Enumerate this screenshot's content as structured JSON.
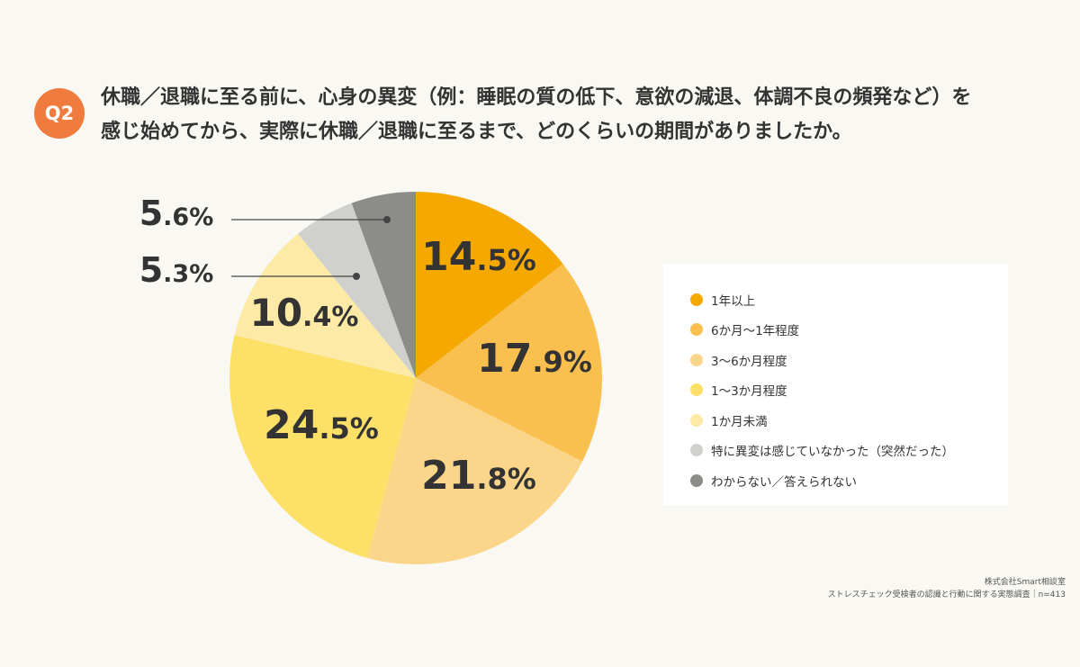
{
  "badge": "Q2",
  "question": {
    "line1": "休職／退職に至る前に、心身の異変（例：睡眠の質の低下、意欲の減退、体調不良の頻発など）を",
    "line2": "感じ始めてから、実際に休職／退職に至るまで、どのくらいの期間がありましたか。"
  },
  "chart_data": {
    "type": "pie",
    "start": "12 o'clock, clockwise",
    "slices": [
      {
        "label": "1年以上",
        "value": 14.5,
        "num": "14",
        "dec": ".5%",
        "color": "#f5a800"
      },
      {
        "label": "6か月〜1年程度",
        "value": 17.9,
        "num": "17",
        "dec": ".9%",
        "color": "#f9c050"
      },
      {
        "label": "3〜6か月程度",
        "value": 21.8,
        "num": "21",
        "dec": ".8%",
        "color": "#fbd68a"
      },
      {
        "label": "1〜3か月程度",
        "value": 24.5,
        "num": "24",
        "dec": ".5%",
        "color": "#fde068"
      },
      {
        "label": "1か月未満",
        "value": 10.4,
        "num": "10",
        "dec": ".4%",
        "color": "#fdeaa6"
      },
      {
        "label": "特に異変は感じていなかった（突然だった）",
        "value": 5.3,
        "num": "5",
        "dec": ".3%",
        "color": "#d0d0cc"
      },
      {
        "label": "わからない／答えられない",
        "value": 5.6,
        "num": "5",
        "dec": ".6%",
        "color": "#8c8c89"
      }
    ],
    "legend_position": "right"
  },
  "source": {
    "line1": "株式会社Smart相談室",
    "line2": "ストレスチェック受検者の認識と行動に関する実態調査｜n=413"
  }
}
